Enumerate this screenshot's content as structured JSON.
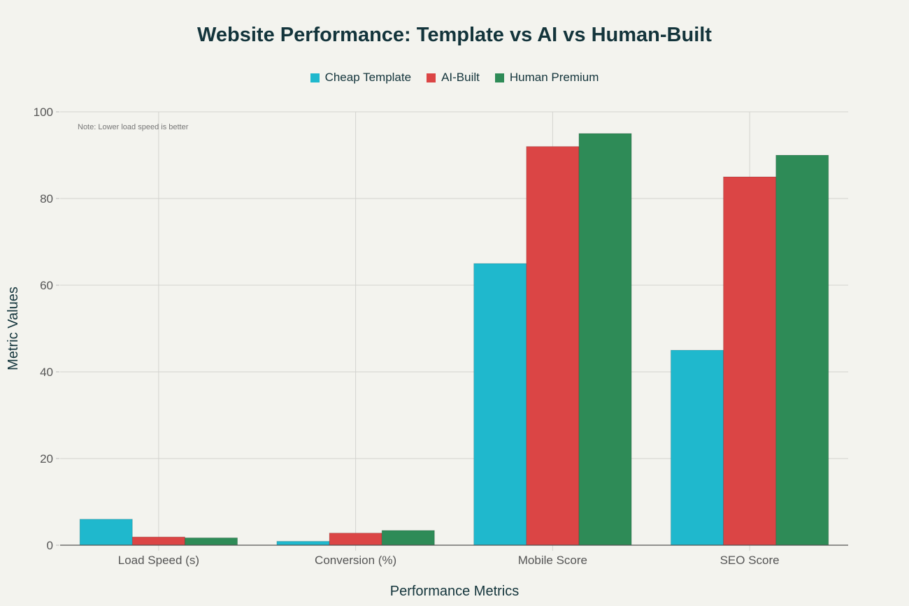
{
  "chart_data": {
    "type": "bar",
    "title": "Website Performance: Template vs AI vs Human-Built",
    "xlabel": "Performance Metrics",
    "ylabel": "Metric Values",
    "categories": [
      "Load Speed (s)",
      "Conversion (%)",
      "Mobile Score",
      "SEO Score"
    ],
    "series": [
      {
        "name": "Cheap Template",
        "color": "#1fb8cd",
        "values": [
          6.0,
          0.9,
          65,
          45
        ]
      },
      {
        "name": "AI-Built",
        "color": "#db4545",
        "values": [
          1.9,
          2.8,
          92,
          85
        ]
      },
      {
        "name": "Human Premium",
        "color": "#2e8b57",
        "values": [
          1.7,
          3.4,
          95,
          90
        ]
      }
    ],
    "ylim": [
      0,
      100
    ],
    "yticks": [
      0,
      20,
      40,
      60,
      80,
      100
    ],
    "grid": true,
    "legend_position": "top-center",
    "annotation": "Note: Lower load speed is better"
  }
}
